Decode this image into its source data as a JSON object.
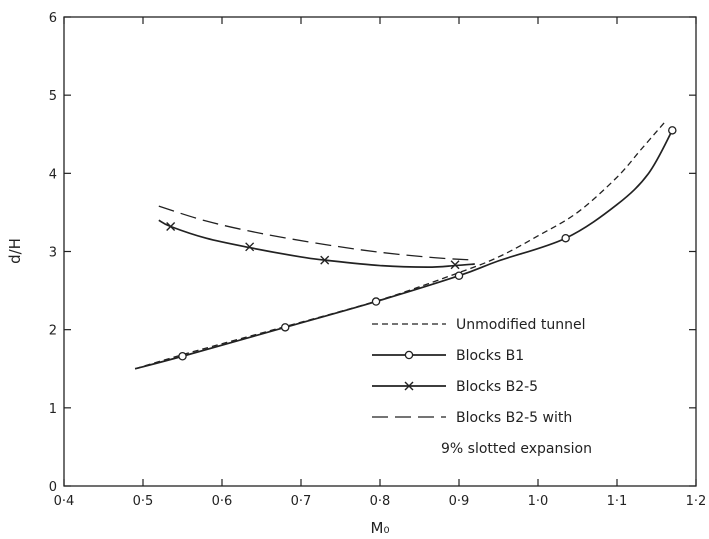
{
  "chart_data": {
    "type": "line",
    "title": "",
    "xlabel": "M₀",
    "ylabel": "d/H",
    "xlim": [
      0.4,
      1.2
    ],
    "ylim": [
      0,
      6
    ],
    "x_ticks": [
      "0·4",
      "0·5",
      "0·6",
      "0·7",
      "0·8",
      "0·9",
      "1·0",
      "1·1",
      "1·2"
    ],
    "y_ticks": [
      "0",
      "1",
      "2",
      "3",
      "4",
      "5",
      "6"
    ],
    "grid": false,
    "legend_position": "bottom-right",
    "series": [
      {
        "name": "Unmodified tunnel",
        "style": "short-dash",
        "x": [
          0.49,
          0.55,
          0.6,
          0.68,
          0.8,
          0.9,
          0.95,
          1.0,
          1.05,
          1.1,
          1.13,
          1.16
        ],
        "y": [
          1.5,
          1.68,
          1.82,
          2.04,
          2.38,
          2.73,
          2.93,
          3.2,
          3.5,
          3.95,
          4.3,
          4.65
        ]
      },
      {
        "name": "Blocks B1",
        "style": "solid-circle",
        "x": [
          0.49,
          0.55,
          0.68,
          0.795,
          0.9,
          0.95,
          1.035,
          1.1,
          1.14,
          1.17
        ],
        "y": [
          1.5,
          1.66,
          2.03,
          2.36,
          2.69,
          2.88,
          3.17,
          3.6,
          4.0,
          4.55
        ],
        "markers_x": [
          0.55,
          0.68,
          0.795,
          0.9,
          1.035,
          1.17
        ],
        "markers_y": [
          1.66,
          2.03,
          2.36,
          2.69,
          3.17,
          4.55
        ]
      },
      {
        "name": "Blocks B2-5",
        "style": "solid-cross",
        "x": [
          0.52,
          0.535,
          0.58,
          0.635,
          0.7,
          0.73,
          0.8,
          0.86,
          0.895,
          0.92
        ],
        "y": [
          3.4,
          3.32,
          3.17,
          3.05,
          2.93,
          2.89,
          2.82,
          2.8,
          2.82,
          2.84
        ],
        "markers_x": [
          0.535,
          0.635,
          0.73,
          0.895
        ],
        "markers_y": [
          3.32,
          3.06,
          2.89,
          2.83
        ]
      },
      {
        "name": "Blocks B2-5 with",
        "name_line2": "9% slotted expansion",
        "style": "long-dash",
        "x": [
          0.52,
          0.58,
          0.65,
          0.73,
          0.8,
          0.87,
          0.92
        ],
        "y": [
          3.58,
          3.39,
          3.23,
          3.09,
          2.99,
          2.92,
          2.89
        ]
      }
    ]
  }
}
